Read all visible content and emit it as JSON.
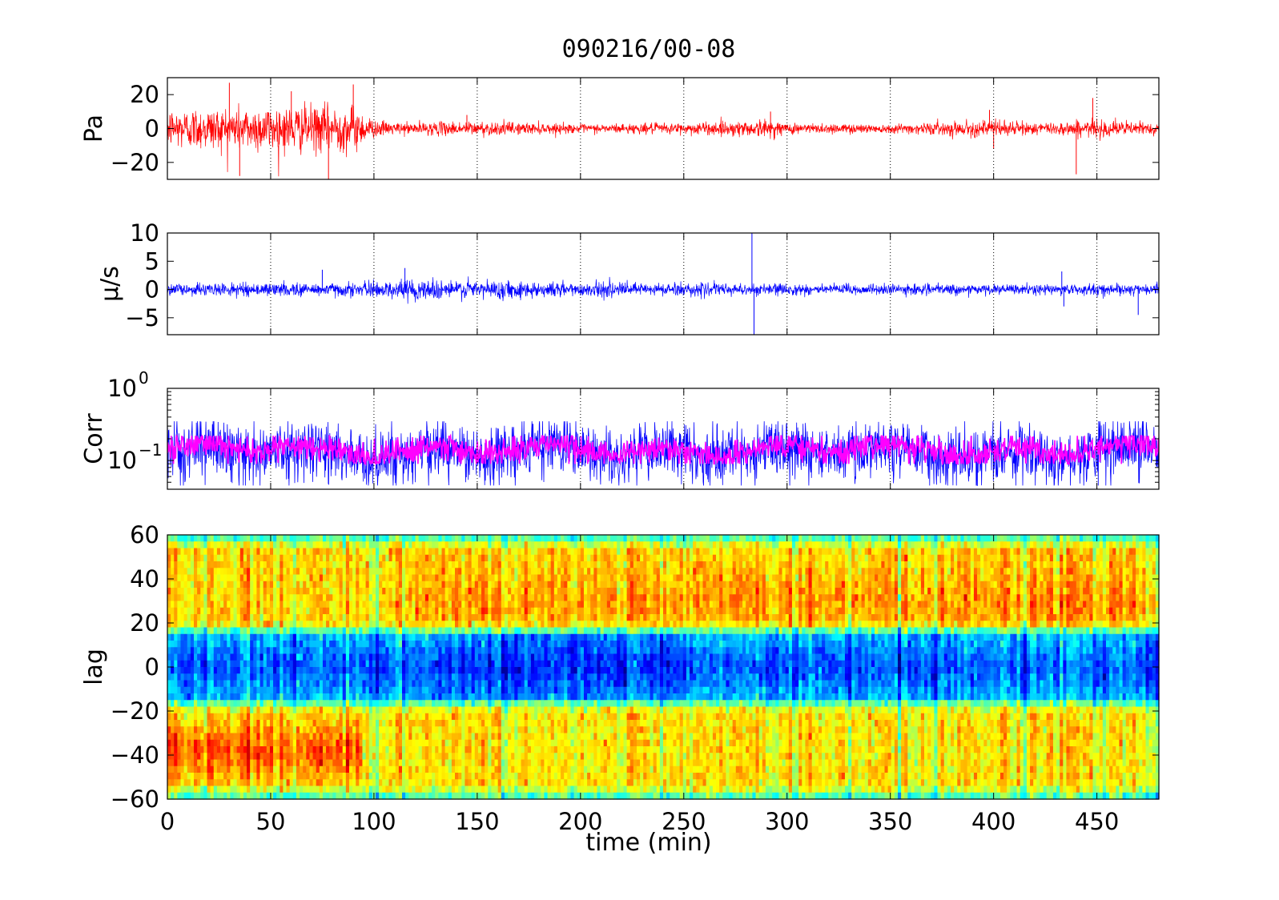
{
  "figure": {
    "title": "090216/00-08",
    "xlabel": "time (min)",
    "colors": {
      "pressure": "#ff0000",
      "velocity": "#0000ff",
      "corr_raw": "#0000ff",
      "corr_smooth": "#ff00ff",
      "axes": "#000000",
      "background": "#ffffff"
    }
  },
  "chart_data": [
    {
      "id": "pressure",
      "type": "line",
      "ylabel": "Pa",
      "xlim": [
        0,
        480
      ],
      "ylim": [
        -30,
        30
      ],
      "xticks": [
        0,
        50,
        100,
        150,
        200,
        250,
        300,
        350,
        400,
        450
      ],
      "yticks": [
        -20,
        0,
        20
      ],
      "ytick_labels": [
        "−20",
        "0",
        "20"
      ],
      "grid": "x-dotted",
      "series": [
        {
          "color": "#ff0000",
          "envelope": [
            {
              "x": 0,
              "amp": 14
            },
            {
              "x": 50,
              "amp": 16
            },
            {
              "x": 90,
              "amp": 16
            },
            {
              "x": 100,
              "amp": 6
            },
            {
              "x": 110,
              "amp": 4
            },
            {
              "x": 150,
              "amp": 5
            },
            {
              "x": 200,
              "amp": 3
            },
            {
              "x": 250,
              "amp": 4
            },
            {
              "x": 290,
              "amp": 6
            },
            {
              "x": 300,
              "amp": 4
            },
            {
              "x": 350,
              "amp": 3
            },
            {
              "x": 400,
              "amp": 6
            },
            {
              "x": 420,
              "amp": 4
            },
            {
              "x": 450,
              "amp": 6
            },
            {
              "x": 480,
              "amp": 4
            }
          ],
          "spikes": [
            [
              30,
              27
            ],
            [
              35,
              -28
            ],
            [
              60,
              22
            ],
            [
              78,
              -30
            ],
            [
              90,
              26
            ],
            [
              145,
              8
            ],
            [
              292,
              10
            ],
            [
              398,
              11
            ],
            [
              440,
              -27
            ],
            [
              448,
              18
            ],
            [
              400,
              -12
            ]
          ]
        }
      ]
    },
    {
      "id": "velocity",
      "type": "line",
      "ylabel": "μ/s",
      "xlim": [
        0,
        480
      ],
      "ylim": [
        -8,
        10
      ],
      "xticks": [
        0,
        50,
        100,
        150,
        200,
        250,
        300,
        350,
        400,
        450
      ],
      "yticks": [
        -5,
        0,
        5,
        10
      ],
      "ytick_labels": [
        "−5",
        "0",
        "5",
        "10"
      ],
      "grid": "x-dotted",
      "series": [
        {
          "color": "#0000ff",
          "envelope": [
            {
              "x": 0,
              "amp": 1.2
            },
            {
              "x": 100,
              "amp": 1.5
            },
            {
              "x": 120,
              "amp": 2.2
            },
            {
              "x": 200,
              "amp": 1.5
            },
            {
              "x": 300,
              "amp": 1.2
            },
            {
              "x": 400,
              "amp": 1.0
            },
            {
              "x": 480,
              "amp": 1.2
            }
          ],
          "spikes": [
            [
              283,
              10
            ],
            [
              284,
              -8
            ],
            [
              433,
              3.2
            ],
            [
              434,
              -3.0
            ],
            [
              470,
              -4.5
            ],
            [
              75,
              3.5
            ],
            [
              115,
              3.8
            ]
          ]
        }
      ]
    },
    {
      "id": "correlation",
      "type": "line",
      "ylabel": "Corr",
      "yscale": "log",
      "xlim": [
        0,
        480
      ],
      "ylim": [
        0.04,
        1
      ],
      "xticks": [
        0,
        50,
        100,
        150,
        200,
        250,
        300,
        350,
        400,
        450
      ],
      "yticks": [
        0.1,
        1
      ],
      "ytick_labels": [
        {
          "base": "10",
          "exp": "−1",
          "value": 0.1
        },
        {
          "base": "10",
          "exp": "0",
          "value": 1
        }
      ],
      "grid": "x-dotted",
      "series": [
        {
          "name": "raw",
          "color": "#0000ff",
          "center": 0.13,
          "spread_low": 0.045,
          "spread_high": 0.35
        },
        {
          "name": "smoothed",
          "color": "#ff00ff",
          "center": 0.14,
          "spread_low": 0.09,
          "spread_high": 0.22
        }
      ]
    },
    {
      "id": "lag",
      "type": "heatmap",
      "ylabel": "lag",
      "xlim": [
        0,
        480
      ],
      "ylim": [
        -60,
        60
      ],
      "xticks": [
        0,
        50,
        100,
        150,
        200,
        250,
        300,
        350,
        400,
        450
      ],
      "xtick_labels": [
        "0",
        "50",
        "100",
        "150",
        "200",
        "250",
        "300",
        "350",
        "400",
        "450"
      ],
      "yticks": [
        -60,
        -40,
        -20,
        0,
        20,
        40,
        60
      ],
      "ytick_labels": [
        "−60",
        "−40",
        "−20",
        "0",
        "20",
        "40",
        "60"
      ],
      "colormap": "jet",
      "structure": {
        "center_band_lag": [
          -12,
          12
        ],
        "center_band_level": 0.2,
        "upper_band_lag": 30,
        "lower_band_lag": -38,
        "strong_lower_until": 95,
        "strong_upper_from": 120
      }
    }
  ]
}
